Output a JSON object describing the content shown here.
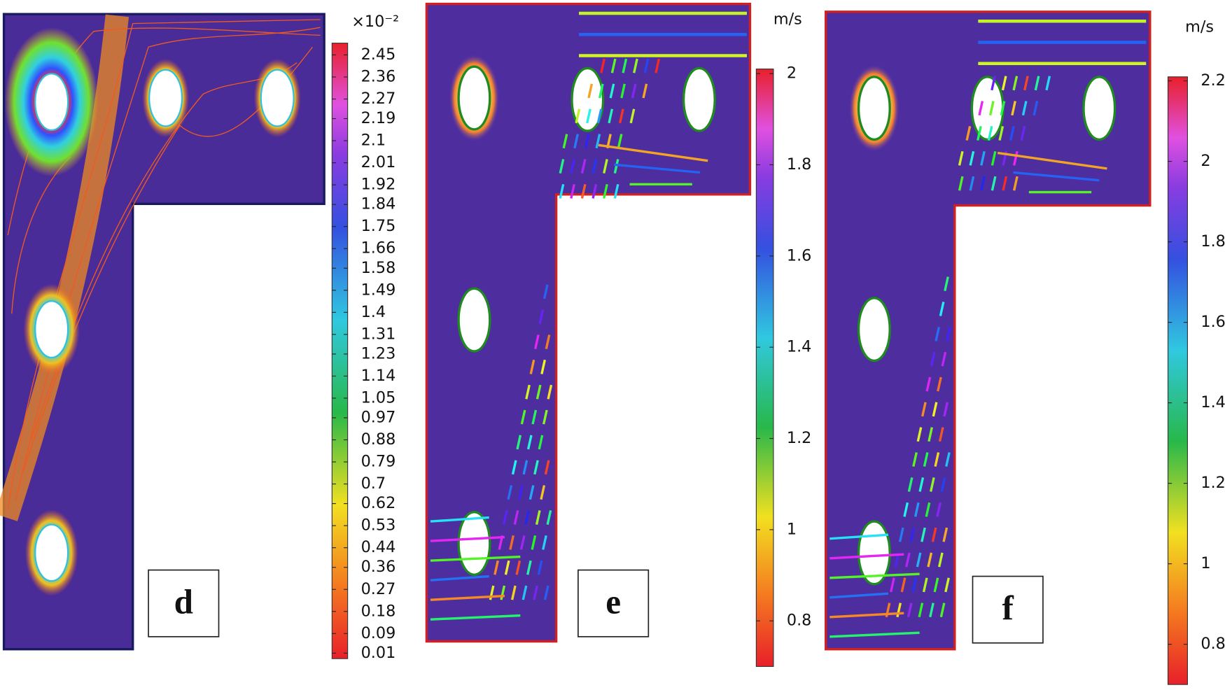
{
  "panels": [
    {
      "label": "d",
      "colorbar": {
        "unit": "×10⁻²",
        "lim": [
          0.01,
          2.45
        ],
        "ticks": [
          0.01,
          0.09,
          0.18,
          0.27,
          0.36,
          0.44,
          0.53,
          0.62,
          0.7,
          0.79,
          0.88,
          0.97,
          1.05,
          1.14,
          1.23,
          1.31,
          1.4,
          1.49,
          1.58,
          1.66,
          1.75,
          1.84,
          1.92,
          2.01,
          2.1,
          2.19,
          2.27,
          2.36,
          2.45
        ]
      }
    },
    {
      "label": "e",
      "colorbar": {
        "unit": "m/s",
        "lim": [
          0.7,
          2.01
        ],
        "ticks": [
          0.8,
          1,
          1.2,
          1.4,
          1.6,
          1.8,
          2
        ]
      }
    },
    {
      "label": "f",
      "colorbar": {
        "unit": "m/s",
        "lim": [
          0.7,
          2.21
        ],
        "ticks": [
          0.8,
          1,
          1.2,
          1.4,
          1.6,
          1.8,
          2,
          2.2
        ]
      }
    }
  ]
}
